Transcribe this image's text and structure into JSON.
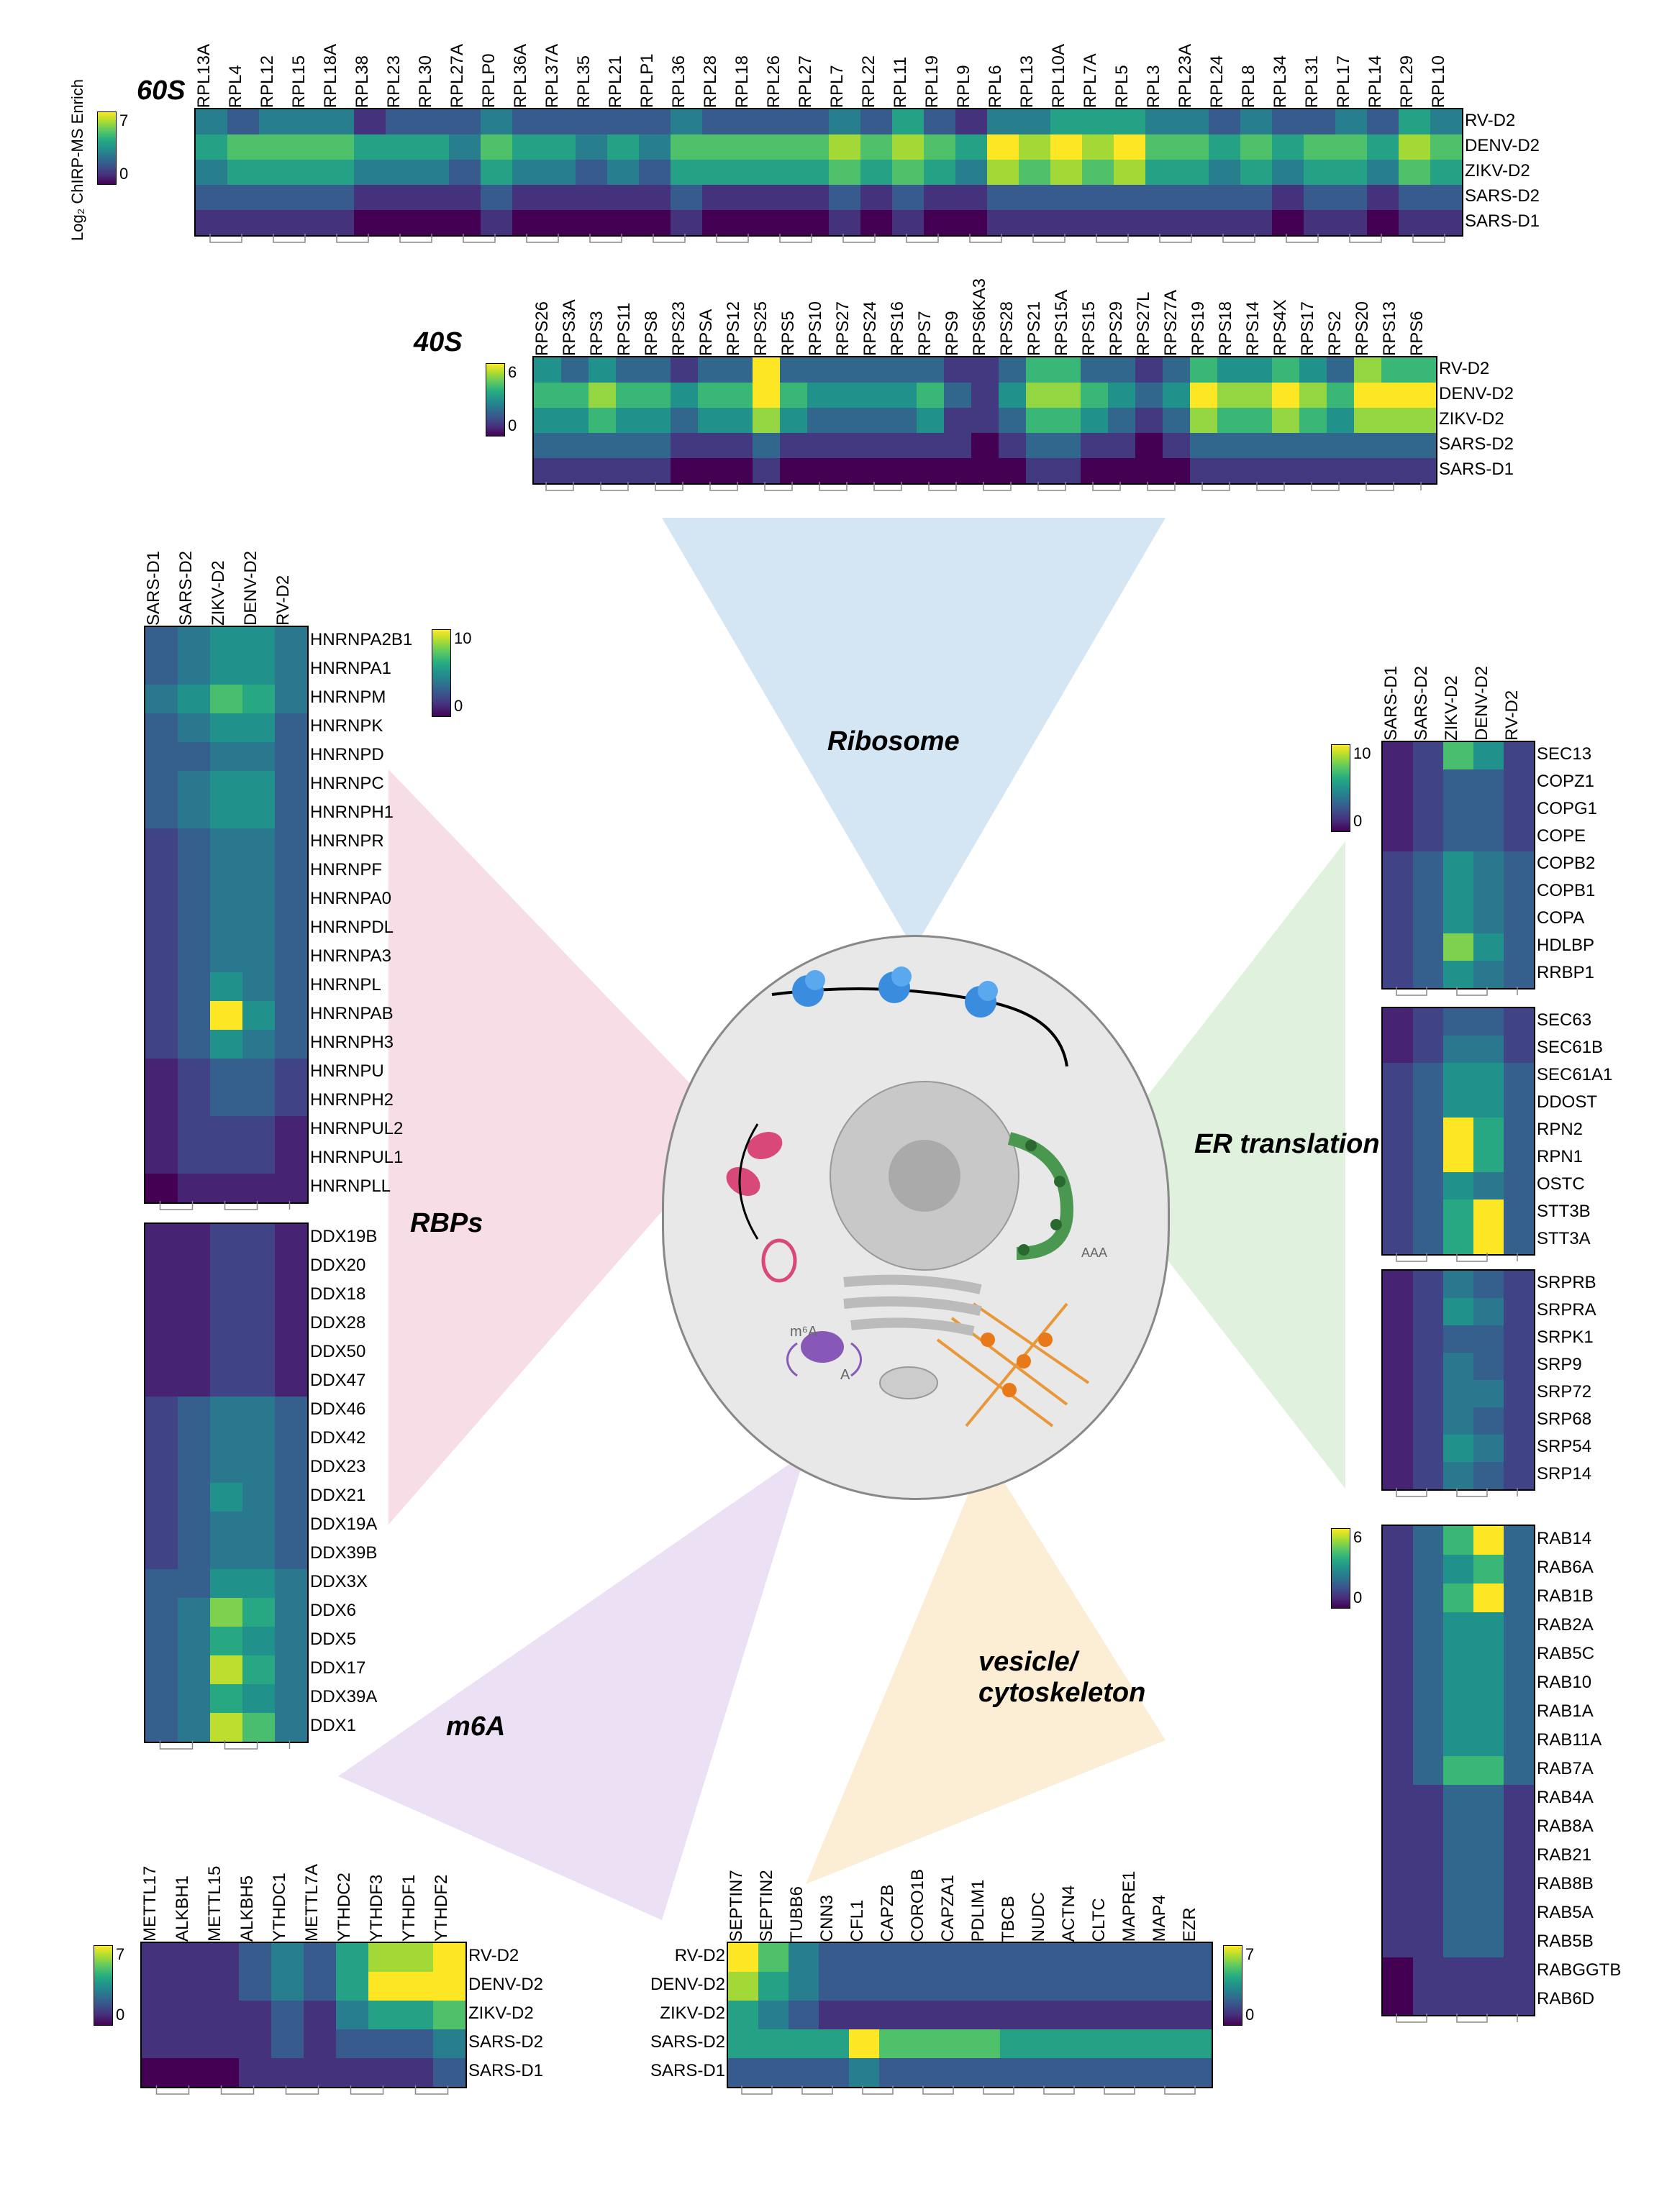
{
  "viridis_palette": [
    "#440154",
    "#472d7b",
    "#3b528b",
    "#2c728e",
    "#21918c",
    "#28ae80",
    "#5ec962",
    "#addc30",
    "#fde725"
  ],
  "section_titles": {
    "s60s": "60S",
    "s40s": "40S",
    "rbps": "RBPs",
    "ribosome": "Ribosome",
    "er": "ER translation",
    "m6a": "m6A",
    "vesicle": "vesicle/\ncytoskeleton"
  },
  "axis_label": "Log₂ ChIRP-MS Enrich",
  "conditions": [
    "RV-D2",
    "DENV-D2",
    "ZIKV-D2",
    "SARS-D2",
    "SARS-D1"
  ],
  "conditions_vert": [
    "SARS-D1",
    "SARS-D2",
    "ZIKV-D2",
    "DENV-D2",
    "RV-D2"
  ],
  "heatmap_60s": {
    "cols": [
      "RPL13A",
      "RPL4",
      "RPL12",
      "RPL15",
      "RPL18A",
      "RPL38",
      "RPL23",
      "RPL30",
      "RPL27A",
      "RPLP0",
      "RPL36A",
      "RPL37A",
      "RPL35",
      "RPL21",
      "RPLP1",
      "RPL36",
      "RPL28",
      "RPL18",
      "RPL26",
      "RPL27",
      "RPL7",
      "RPL22",
      "RPL11",
      "RPL19",
      "RPL9",
      "RPL6",
      "RPL13",
      "RPL10A",
      "RPL7A",
      "RPL5",
      "RPL3",
      "RPL23A",
      "RPL24",
      "RPL8",
      "RPL34",
      "RPL31",
      "RPL17",
      "RPL14",
      "RPL29",
      "RPL10"
    ],
    "rows": [
      "RV-D2",
      "DENV-D2",
      "ZIKV-D2",
      "SARS-D2",
      "SARS-D1"
    ],
    "max": 7,
    "data": [
      [
        3,
        2,
        3,
        3,
        3,
        1,
        2,
        2,
        2,
        3,
        2,
        2,
        2,
        2,
        2,
        3,
        2,
        2,
        2,
        2,
        3,
        2,
        4,
        2,
        1,
        3,
        3,
        4,
        4,
        4,
        3,
        3,
        2,
        3,
        2,
        2,
        3,
        2,
        4,
        3
      ],
      [
        4,
        5,
        5,
        5,
        5,
        4,
        4,
        4,
        3,
        5,
        4,
        4,
        3,
        4,
        3,
        5,
        5,
        5,
        5,
        5,
        6,
        5,
        6,
        5,
        4,
        7,
        6,
        7,
        6,
        7,
        5,
        5,
        4,
        5,
        4,
        5,
        5,
        4,
        6,
        5
      ],
      [
        3,
        4,
        4,
        4,
        4,
        3,
        3,
        3,
        2,
        4,
        3,
        3,
        2,
        3,
        2,
        4,
        4,
        4,
        4,
        4,
        5,
        4,
        5,
        4,
        3,
        6,
        5,
        6,
        5,
        6,
        4,
        4,
        3,
        4,
        3,
        4,
        4,
        3,
        5,
        4
      ],
      [
        2,
        2,
        2,
        2,
        2,
        1,
        1,
        1,
        1,
        2,
        1,
        1,
        1,
        1,
        1,
        2,
        1,
        1,
        1,
        1,
        2,
        1,
        2,
        1,
        1,
        2,
        2,
        2,
        2,
        2,
        2,
        2,
        2,
        2,
        1,
        2,
        2,
        1,
        2,
        2
      ],
      [
        1,
        1,
        1,
        1,
        1,
        0,
        0,
        0,
        0,
        1,
        0,
        0,
        0,
        0,
        0,
        1,
        0,
        0,
        0,
        0,
        1,
        0,
        1,
        0,
        0,
        1,
        1,
        1,
        1,
        1,
        1,
        1,
        1,
        1,
        0,
        1,
        1,
        0,
        1,
        1
      ]
    ]
  },
  "heatmap_40s": {
    "cols": [
      "RPS26",
      "RPS3A",
      "RPS3",
      "RPS11",
      "RPS8",
      "RPS23",
      "RPSA",
      "RPS12",
      "RPS25",
      "RPS5",
      "RPS10",
      "RPS27",
      "RPS24",
      "RPS16",
      "RPS7",
      "RPS9",
      "RPS6KA3",
      "RPS28",
      "RPS21",
      "RPS15A",
      "RPS15",
      "RPS29",
      "RPS27L",
      "RPS27A",
      "RPS19",
      "RPS18",
      "RPS14",
      "RPS4X",
      "RPS17",
      "RPS2",
      "RPS20",
      "RPS13",
      "RPS6"
    ],
    "rows": [
      "RV-D2",
      "DENV-D2",
      "ZIKV-D2",
      "SARS-D2",
      "SARS-D1"
    ],
    "max": 6,
    "data": [
      [
        3,
        2,
        3,
        2,
        2,
        1,
        2,
        2,
        6,
        2,
        2,
        2,
        2,
        2,
        2,
        1,
        1,
        2,
        4,
        4,
        2,
        2,
        1,
        2,
        4,
        3,
        3,
        4,
        3,
        2,
        5,
        4,
        4
      ],
      [
        4,
        4,
        5,
        4,
        4,
        3,
        4,
        4,
        6,
        4,
        3,
        3,
        3,
        3,
        4,
        2,
        1,
        3,
        5,
        5,
        4,
        3,
        2,
        3,
        6,
        5,
        5,
        6,
        5,
        4,
        6,
        6,
        6
      ],
      [
        3,
        3,
        4,
        3,
        3,
        2,
        3,
        3,
        5,
        3,
        2,
        2,
        2,
        2,
        3,
        1,
        1,
        2,
        4,
        4,
        3,
        2,
        1,
        2,
        5,
        4,
        4,
        5,
        4,
        3,
        5,
        5,
        5
      ],
      [
        2,
        2,
        2,
        2,
        2,
        1,
        1,
        1,
        2,
        1,
        1,
        1,
        1,
        1,
        1,
        1,
        0,
        1,
        2,
        2,
        1,
        1,
        0,
        1,
        2,
        2,
        2,
        2,
        2,
        2,
        2,
        2,
        2
      ],
      [
        1,
        1,
        1,
        1,
        1,
        0,
        0,
        0,
        1,
        0,
        0,
        0,
        0,
        0,
        0,
        0,
        0,
        0,
        1,
        1,
        0,
        0,
        0,
        0,
        1,
        1,
        1,
        1,
        1,
        1,
        1,
        1,
        1
      ]
    ]
  },
  "heatmap_hnrnp": {
    "cols": [
      "SARS-D1",
      "SARS-D2",
      "ZIKV-D2",
      "DENV-D2",
      "RV-D2"
    ],
    "rows": [
      "HNRNPA2B1",
      "HNRNPA1",
      "HNRNPM",
      "HNRNPK",
      "HNRNPD",
      "HNRNPC",
      "HNRNPH1",
      "HNRNPR",
      "HNRNPF",
      "HNRNPA0",
      "HNRNPDL",
      "HNRNPA3",
      "HNRNPL",
      "HNRNPAB",
      "HNRNPH3",
      "HNRNPU",
      "HNRNPH2",
      "HNRNPUL2",
      "HNRNPUL1",
      "HNRNPLL"
    ],
    "max": 10,
    "data": [
      [
        3,
        4,
        5,
        5,
        4
      ],
      [
        3,
        4,
        5,
        5,
        4
      ],
      [
        4,
        5,
        7,
        6,
        4
      ],
      [
        3,
        4,
        5,
        5,
        3
      ],
      [
        3,
        3,
        4,
        4,
        3
      ],
      [
        3,
        4,
        5,
        5,
        3
      ],
      [
        3,
        4,
        5,
        5,
        3
      ],
      [
        2,
        3,
        4,
        4,
        3
      ],
      [
        2,
        3,
        4,
        4,
        3
      ],
      [
        2,
        3,
        4,
        4,
        3
      ],
      [
        2,
        3,
        4,
        4,
        3
      ],
      [
        2,
        3,
        4,
        4,
        3
      ],
      [
        2,
        3,
        5,
        4,
        3
      ],
      [
        2,
        3,
        10,
        5,
        3
      ],
      [
        2,
        3,
        5,
        4,
        3
      ],
      [
        1,
        2,
        3,
        3,
        2
      ],
      [
        1,
        2,
        3,
        3,
        2
      ],
      [
        1,
        2,
        2,
        2,
        1
      ],
      [
        1,
        2,
        2,
        2,
        1
      ],
      [
        0,
        1,
        1,
        1,
        1
      ]
    ]
  },
  "heatmap_ddx": {
    "cols": [
      "SARS-D1",
      "SARS-D2",
      "ZIKV-D2",
      "DENV-D2",
      "RV-D2"
    ],
    "rows": [
      "DDX19B",
      "DDX20",
      "DDX18",
      "DDX28",
      "DDX50",
      "DDX47",
      "DDX46",
      "DDX42",
      "DDX23",
      "DDX21",
      "DDX19A",
      "DDX39B",
      "DDX3X",
      "DDX6",
      "DDX5",
      "DDX17",
      "DDX39A",
      "DDX1"
    ],
    "max": 10,
    "data": [
      [
        1,
        1,
        2,
        2,
        1
      ],
      [
        1,
        1,
        2,
        2,
        1
      ],
      [
        1,
        1,
        2,
        2,
        1
      ],
      [
        1,
        1,
        2,
        2,
        1
      ],
      [
        1,
        1,
        2,
        2,
        1
      ],
      [
        1,
        1,
        2,
        2,
        1
      ],
      [
        2,
        3,
        4,
        4,
        3
      ],
      [
        2,
        3,
        4,
        4,
        3
      ],
      [
        2,
        3,
        4,
        4,
        3
      ],
      [
        2,
        3,
        5,
        4,
        3
      ],
      [
        2,
        3,
        4,
        4,
        3
      ],
      [
        2,
        3,
        4,
        4,
        3
      ],
      [
        3,
        3,
        5,
        5,
        4
      ],
      [
        3,
        4,
        8,
        6,
        4
      ],
      [
        3,
        4,
        6,
        5,
        4
      ],
      [
        3,
        4,
        9,
        6,
        4
      ],
      [
        3,
        4,
        6,
        5,
        4
      ],
      [
        3,
        4,
        9,
        7,
        4
      ]
    ]
  },
  "heatmap_m6a": {
    "cols": [
      "METTL17",
      "ALKBH1",
      "METTL15",
      "ALKBH5",
      "YTHDC1",
      "METTL7A",
      "YTHDC2",
      "YTHDF3",
      "YTHDF1",
      "YTHDF2"
    ],
    "rows": [
      "RV-D2",
      "DENV-D2",
      "ZIKV-D2",
      "SARS-D2",
      "SARS-D1"
    ],
    "max": 7,
    "data": [
      [
        1,
        1,
        1,
        2,
        3,
        2,
        4,
        6,
        6,
        7
      ],
      [
        1,
        1,
        1,
        2,
        3,
        2,
        4,
        7,
        7,
        7
      ],
      [
        1,
        1,
        1,
        1,
        2,
        1,
        3,
        4,
        4,
        5
      ],
      [
        1,
        1,
        1,
        1,
        2,
        1,
        2,
        2,
        2,
        3
      ],
      [
        0,
        0,
        0,
        1,
        1,
        1,
        1,
        1,
        1,
        2
      ]
    ]
  },
  "heatmap_cyto": {
    "cols": [
      "SEPTIN7",
      "SEPTIN2",
      "TUBB6",
      "CNN3",
      "CFL1",
      "CAPZB",
      "CORO1B",
      "CAPZA1",
      "PDLIM1",
      "TBCB",
      "NUDC",
      "ACTN4",
      "CLTC",
      "MAPRE1",
      "MAP4",
      "EZR"
    ],
    "rows": [
      "RV-D2",
      "DENV-D2",
      "ZIKV-D2",
      "SARS-D2",
      "SARS-D1"
    ],
    "max": 7,
    "data": [
      [
        7,
        5,
        3,
        2,
        2,
        2,
        2,
        2,
        2,
        2,
        2,
        2,
        2,
        2,
        2,
        2
      ],
      [
        6,
        4,
        3,
        2,
        2,
        2,
        2,
        2,
        2,
        2,
        2,
        2,
        2,
        2,
        2,
        2
      ],
      [
        4,
        3,
        2,
        1,
        1,
        1,
        1,
        1,
        1,
        1,
        1,
        1,
        1,
        1,
        1,
        1
      ],
      [
        4,
        4,
        4,
        4,
        7,
        5,
        5,
        5,
        5,
        4,
        4,
        4,
        4,
        4,
        4,
        4
      ],
      [
        2,
        2,
        2,
        2,
        3,
        2,
        2,
        2,
        2,
        2,
        2,
        2,
        2,
        2,
        2,
        2
      ]
    ]
  },
  "heatmap_er1": {
    "cols": [
      "SARS-D1",
      "SARS-D2",
      "ZIKV-D2",
      "DENV-D2",
      "RV-D2"
    ],
    "rows": [
      "SEC13",
      "COPZ1",
      "COPG1",
      "COPE",
      "COPB2",
      "COPB1",
      "COPA",
      "HDLBP",
      "RRBP1"
    ],
    "max": 10,
    "data": [
      [
        1,
        2,
        7,
        5,
        2
      ],
      [
        1,
        2,
        3,
        3,
        2
      ],
      [
        1,
        2,
        3,
        3,
        2
      ],
      [
        1,
        2,
        3,
        3,
        2
      ],
      [
        2,
        3,
        5,
        4,
        3
      ],
      [
        2,
        3,
        5,
        4,
        3
      ],
      [
        2,
        3,
        5,
        4,
        3
      ],
      [
        2,
        3,
        8,
        5,
        3
      ],
      [
        2,
        3,
        5,
        4,
        3
      ]
    ]
  },
  "heatmap_er2": {
    "cols": [
      "SARS-D1",
      "SARS-D2",
      "ZIKV-D2",
      "DENV-D2",
      "RV-D2"
    ],
    "rows": [
      "SEC63",
      "SEC61B",
      "SEC61A1",
      "DDOST",
      "RPN2",
      "RPN1",
      "OSTC",
      "STT3B",
      "STT3A"
    ],
    "max": 10,
    "data": [
      [
        1,
        2,
        3,
        3,
        2
      ],
      [
        1,
        2,
        4,
        4,
        2
      ],
      [
        2,
        3,
        5,
        5,
        3
      ],
      [
        2,
        3,
        5,
        5,
        3
      ],
      [
        2,
        3,
        10,
        6,
        3
      ],
      [
        2,
        3,
        10,
        6,
        3
      ],
      [
        2,
        3,
        5,
        4,
        3
      ],
      [
        2,
        3,
        6,
        10,
        3
      ],
      [
        2,
        3,
        6,
        10,
        3
      ]
    ]
  },
  "heatmap_er3": {
    "cols": [
      "SARS-D1",
      "SARS-D2",
      "ZIKV-D2",
      "DENV-D2",
      "RV-D2"
    ],
    "rows": [
      "SRPRB",
      "SRPRA",
      "SRPK1",
      "SRP9",
      "SRP72",
      "SRP68",
      "SRP54",
      "SRP14"
    ],
    "max": 10,
    "data": [
      [
        1,
        2,
        4,
        3,
        2
      ],
      [
        1,
        2,
        5,
        4,
        2
      ],
      [
        1,
        2,
        3,
        3,
        2
      ],
      [
        1,
        2,
        4,
        3,
        2
      ],
      [
        1,
        2,
        4,
        4,
        2
      ],
      [
        1,
        2,
        4,
        3,
        2
      ],
      [
        1,
        2,
        5,
        4,
        2
      ],
      [
        1,
        2,
        4,
        3,
        2
      ]
    ]
  },
  "heatmap_rab": {
    "cols": [
      "SARS-D1",
      "SARS-D2",
      "ZIKV-D2",
      "DENV-D2",
      "RV-D2"
    ],
    "rows": [
      "RAB14",
      "RAB6A",
      "RAB1B",
      "RAB2A",
      "RAB5C",
      "RAB10",
      "RAB1A",
      "RAB11A",
      "RAB7A",
      "RAB4A",
      "RAB8A",
      "RAB21",
      "RAB8B",
      "RAB5A",
      "RAB5B",
      "RABGGTB",
      "RAB6D"
    ],
    "max": 6,
    "data": [
      [
        1,
        2,
        4,
        6,
        2
      ],
      [
        1,
        2,
        3,
        4,
        2
      ],
      [
        1,
        2,
        4,
        6,
        2
      ],
      [
        1,
        2,
        3,
        3,
        2
      ],
      [
        1,
        2,
        3,
        3,
        2
      ],
      [
        1,
        2,
        3,
        3,
        2
      ],
      [
        1,
        2,
        3,
        3,
        2
      ],
      [
        1,
        2,
        3,
        3,
        2
      ],
      [
        1,
        2,
        4,
        4,
        2
      ],
      [
        1,
        1,
        2,
        2,
        1
      ],
      [
        1,
        1,
        2,
        2,
        1
      ],
      [
        1,
        1,
        2,
        2,
        1
      ],
      [
        1,
        1,
        2,
        2,
        1
      ],
      [
        1,
        1,
        2,
        2,
        1
      ],
      [
        1,
        1,
        2,
        2,
        1
      ],
      [
        0,
        1,
        1,
        1,
        1
      ],
      [
        0,
        1,
        1,
        1,
        1
      ]
    ]
  },
  "beam_colors": {
    "ribosome": "#87b8e0",
    "rbps": "#e8a0b8",
    "er": "#a8d8a0",
    "m6a": "#c8a8e0",
    "cyto": "#f8d088"
  }
}
